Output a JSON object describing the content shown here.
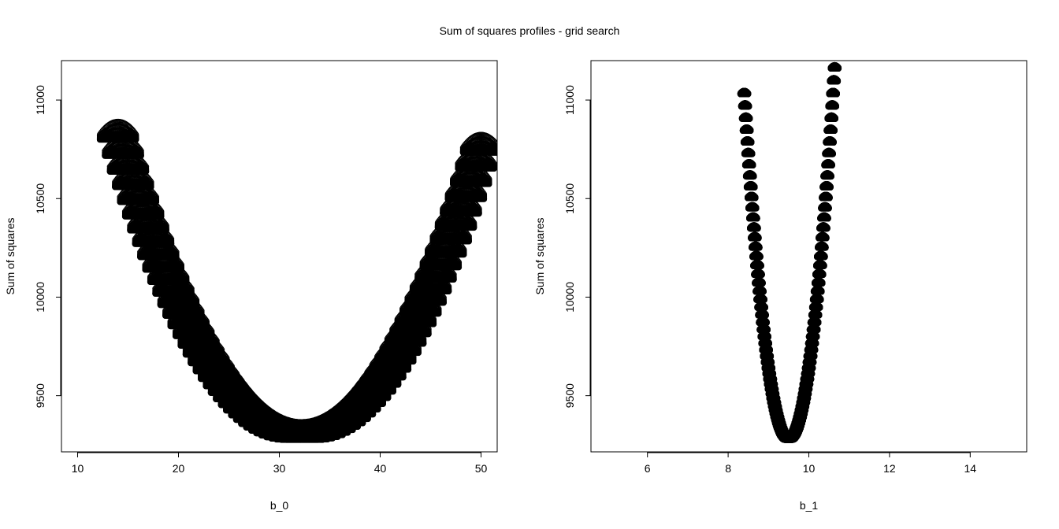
{
  "figure": {
    "title": "Sum of squares profiles - grid search"
  },
  "chart_data": [
    {
      "type": "scatter",
      "marker": "open-circle",
      "title": "",
      "xlabel": "b_0",
      "ylabel": "Sum of squares",
      "xlim": [
        8.4,
        51.6
      ],
      "ylim": [
        9215,
        11200
      ],
      "xticks": [
        10,
        20,
        30,
        40,
        50
      ],
      "yticks": [
        9500,
        10000,
        10500,
        11000
      ],
      "grid": false,
      "profile": {
        "grid_x": [
          14,
          50
        ],
        "grid_step": 0.5,
        "levels": [
          0,
          0.17,
          0.47,
          0.93,
          1.6,
          2.45,
          3.55,
          4.9
        ],
        "vertex_x": 32.2,
        "min_ss": 9275,
        "curvature": 4.6,
        "arc_width": 1.8
      }
    },
    {
      "type": "scatter",
      "marker": "open-circle",
      "title": "",
      "xlabel": "b_1",
      "ylabel": "Sum of squares",
      "xlim": [
        4.6,
        15.4
      ],
      "ylim": [
        9215,
        11200
      ],
      "xticks": [
        6,
        8,
        10,
        12,
        14
      ],
      "yticks": [
        9500,
        10000,
        10500,
        11000
      ],
      "grid": false,
      "profile": {
        "grid_x": [
          8.4,
          10.66
        ],
        "grid_step": 0.02,
        "levels": [
          0,
          0.1,
          0.3,
          0.6,
          1.0
        ],
        "vertex_x": 9.5,
        "min_ss": 9275,
        "curvature": 1450,
        "arc_width": 0.1
      }
    }
  ]
}
